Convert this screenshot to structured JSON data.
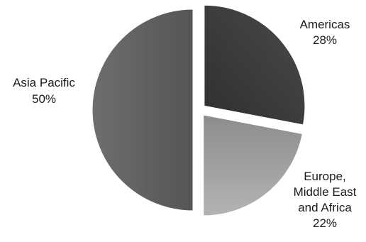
{
  "chart_data": {
    "type": "pie",
    "title": "",
    "exploded": true,
    "start_angle": "12 o'clock",
    "direction": "clockwise",
    "slices": [
      {
        "name": "Americas",
        "value": 28,
        "label_lines": [
          "Americas",
          "28%"
        ],
        "color": "#2f2f2f",
        "gradient_to": "#4a4a4a"
      },
      {
        "name": "Europe, Middle East and Africa",
        "value": 22,
        "label_lines": [
          "Europe,",
          "Middle East",
          "and Africa",
          "22%"
        ],
        "color": "#8c8c8c",
        "gradient_to": "#b3b3b3"
      },
      {
        "name": "Asia Pacific",
        "value": 50,
        "label_lines": [
          "Asia Pacific",
          "50%"
        ],
        "color": "#555555",
        "gradient_to": "#6e6e6e"
      }
    ]
  }
}
